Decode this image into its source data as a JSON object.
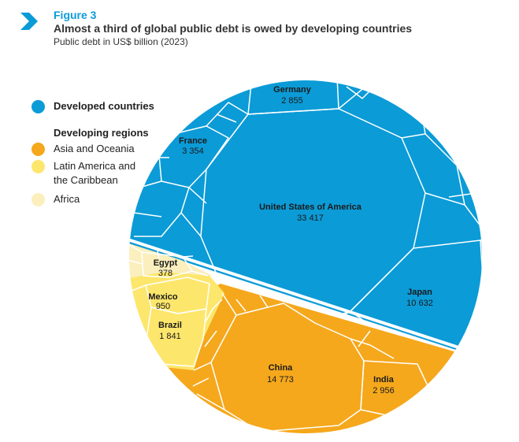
{
  "header": {
    "figure_label": "Figure 3",
    "title": "Almost a third of global public debt is owed by developing countries",
    "subtitle": "Public debt in US$ billion (2023)"
  },
  "legend": {
    "developed": "Developed countries",
    "developing_heading": "Developing regions",
    "asia": "Asia and Oceania",
    "latam_line1": "Latin America and",
    "latam_line2": "the Caribbean",
    "africa": "Africa"
  },
  "colors": {
    "developed": "#0b9bd7",
    "asia": "#f5a81c",
    "latam": "#fde66c",
    "africa": "#fbefbd",
    "accent": "#0b9bd7"
  },
  "chart_data": {
    "type": "voronoi-treemap",
    "unit": "US$ billion",
    "year": 2023,
    "groups": [
      "Developed countries",
      "Asia and Oceania",
      "Latin America and the Caribbean",
      "Africa"
    ],
    "labeled_cells": [
      {
        "name": "United States of America",
        "value_label": "33 417",
        "value": 33417,
        "group": "Developed countries"
      },
      {
        "name": "China",
        "value_label": "14 773",
        "value": 14773,
        "group": "Asia and Oceania"
      },
      {
        "name": "Japan",
        "value_label": "10 632",
        "value": 10632,
        "group": "Developed countries"
      },
      {
        "name": "France",
        "value_label": "3 354",
        "value": 3354,
        "group": "Developed countries"
      },
      {
        "name": "India",
        "value_label": "2 956",
        "value": 2956,
        "group": "Asia and Oceania"
      },
      {
        "name": "Germany",
        "value_label": "2 855",
        "value": 2855,
        "group": "Developed countries"
      },
      {
        "name": "Brazil",
        "value_label": "1 841",
        "value": 1841,
        "group": "Latin America and the Caribbean"
      },
      {
        "name": "Mexico",
        "value_label": "950",
        "value": 950,
        "group": "Latin America and the Caribbean"
      },
      {
        "name": "Egypt",
        "value_label": "378",
        "value": 378,
        "group": "Africa"
      }
    ]
  }
}
